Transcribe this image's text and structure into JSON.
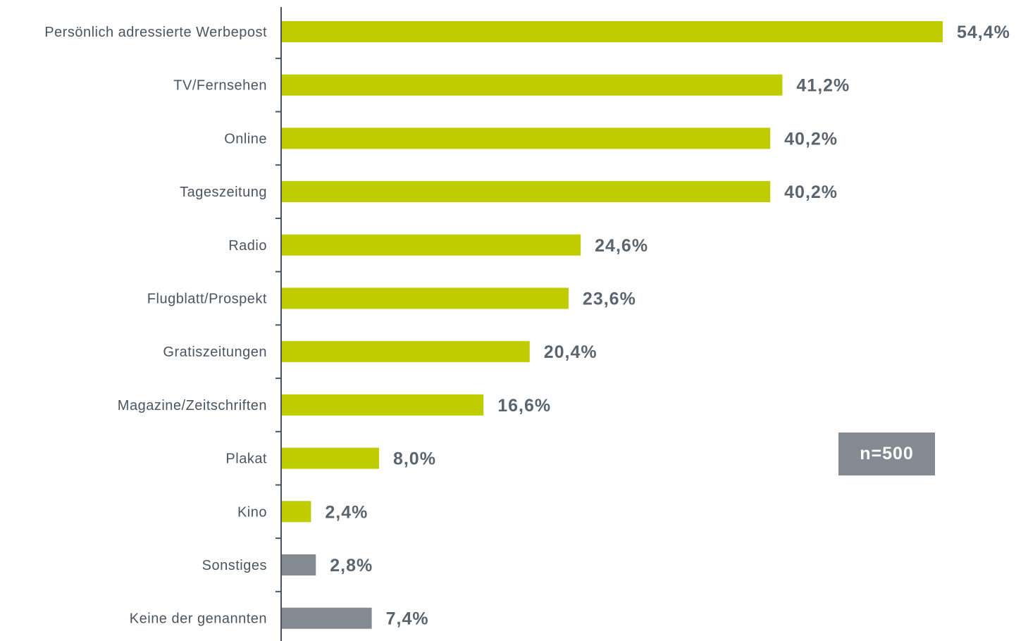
{
  "chart_data": {
    "type": "bar",
    "orientation": "horizontal",
    "categories": [
      "Persönlich adressierte Werbepost",
      "TV/Fernsehen",
      "Online",
      "Tageszeitung",
      "Radio",
      "Flugblatt/Prospekt",
      "Gratiszeitungen",
      "Magazine/Zeitschriften",
      "Plakat",
      "Kino",
      "Sonstiges",
      "Keine der genannten"
    ],
    "values": [
      54.4,
      41.2,
      40.2,
      40.2,
      24.6,
      23.6,
      20.4,
      16.6,
      8.0,
      2.4,
      2.8,
      7.4
    ],
    "value_labels": [
      "54,4%",
      "41,2%",
      "40,2%",
      "40,2%",
      "24,6%",
      "23,6%",
      "20,4%",
      "16,6%",
      "8,0%",
      "2,4%",
      "2,8%",
      "7,4%"
    ],
    "bar_colors": [
      "#bfcd00",
      "#bfcd00",
      "#bfcd00",
      "#bfcd00",
      "#bfcd00",
      "#bfcd00",
      "#bfcd00",
      "#bfcd00",
      "#bfcd00",
      "#bfcd00",
      "#838a92",
      "#838a92"
    ],
    "xlim": [
      0,
      54.4
    ],
    "title": "",
    "xlabel": "",
    "ylabel": "",
    "grid": false,
    "axis_color": "#4a5561"
  },
  "annotation": {
    "sample_size": "n=500",
    "color": "#838a92"
  }
}
